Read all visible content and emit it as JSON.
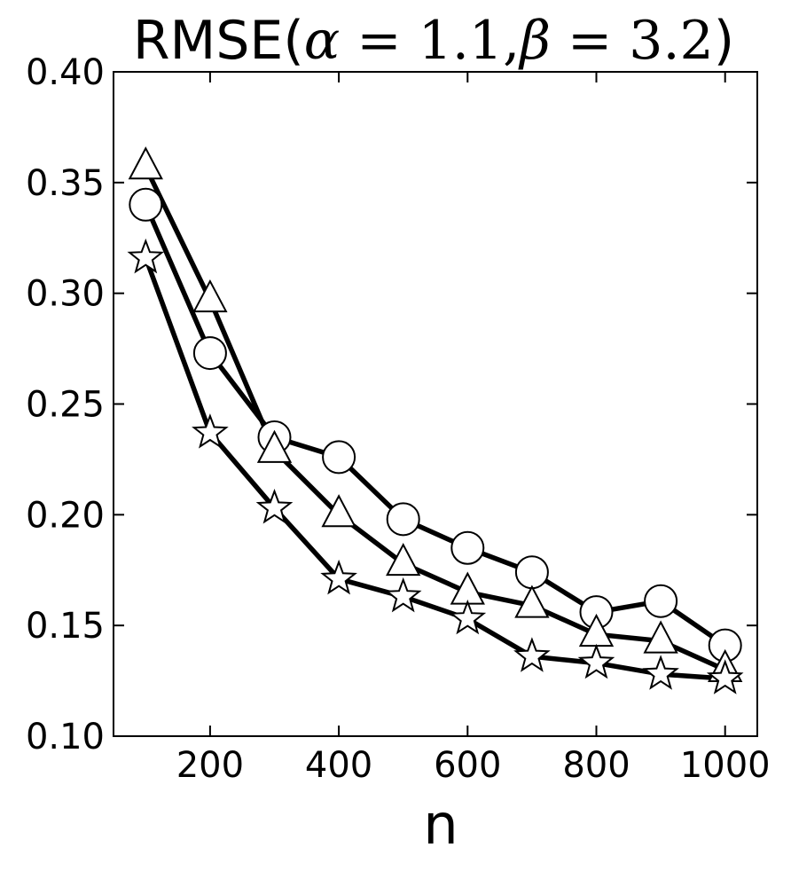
{
  "chart_data": {
    "type": "line",
    "title": "RMSE(α = 1.1, β = 3.2)",
    "title_parts": {
      "prefix": "RMSE(",
      "alpha_sym": "α",
      "alpha_eq": " = ",
      "alpha_val": "1.1",
      "sep": ",",
      "beta_sym": "β",
      "beta_eq": " = ",
      "beta_val": "3.2",
      "suffix": ")"
    },
    "xlabel": "n",
    "ylabel": "",
    "xlim": [
      50,
      1050
    ],
    "ylim": [
      0.1,
      0.4
    ],
    "xticks": [
      200,
      400,
      600,
      800,
      1000
    ],
    "xtick_labels": [
      "200",
      "400",
      "600",
      "800",
      "1000"
    ],
    "yticks": [
      0.1,
      0.15,
      0.2,
      0.25,
      0.3,
      0.35,
      0.4
    ],
    "ytick_labels": [
      "0.10",
      "0.15",
      "0.20",
      "0.25",
      "0.30",
      "0.35",
      "0.40"
    ],
    "grid": false,
    "legend": "none",
    "x": [
      100,
      200,
      300,
      400,
      500,
      600,
      700,
      800,
      900,
      1000
    ],
    "series": [
      {
        "marker": "circle",
        "color": "#000000",
        "values": [
          0.34,
          0.273,
          0.235,
          0.226,
          0.198,
          0.185,
          0.174,
          0.156,
          0.161,
          0.141
        ]
      },
      {
        "marker": "triangle",
        "color": "#000000",
        "values": [
          0.357,
          0.297,
          0.229,
          0.2,
          0.178,
          0.165,
          0.159,
          0.146,
          0.143,
          0.13
        ]
      },
      {
        "marker": "star",
        "color": "#000000",
        "values": [
          0.316,
          0.237,
          0.203,
          0.171,
          0.163,
          0.153,
          0.136,
          0.133,
          0.128,
          0.126
        ]
      }
    ]
  }
}
